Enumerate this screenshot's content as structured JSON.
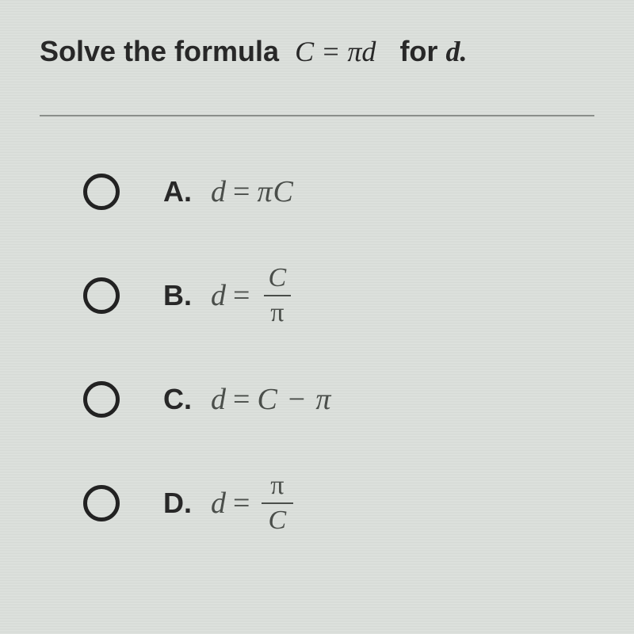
{
  "question": {
    "prefix": "Solve the formula",
    "formula": "C = πd",
    "suffix": "for",
    "variable": "d.",
    "text_color": "#282828",
    "font_size": 36
  },
  "divider_color": "#8a8e8a",
  "background_base": "#d4d8d4",
  "math_color": "#4a4e4a",
  "radio_border": "#222222",
  "radio_size": 46,
  "radio_border_width": 5,
  "options": [
    {
      "label": "A.",
      "lhs": "d",
      "rhs_type": "inline",
      "rhs": "πC"
    },
    {
      "label": "B.",
      "lhs": "d",
      "rhs_type": "fraction",
      "num": "C",
      "den": "π"
    },
    {
      "label": "C.",
      "lhs": "d",
      "rhs_type": "inline",
      "rhs": "C − π"
    },
    {
      "label": "D.",
      "lhs": "d",
      "rhs_type": "fraction",
      "num": "π",
      "den": "C"
    }
  ]
}
